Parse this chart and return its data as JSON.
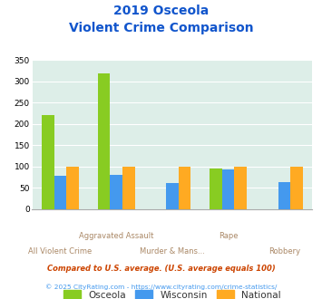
{
  "title_line1": "2019 Osceola",
  "title_line2": "Violent Crime Comparison",
  "categories": [
    "All Violent Crime",
    "Aggravated Assault",
    "Murder & Mans...",
    "Rape",
    "Robbery"
  ],
  "series": {
    "Osceola": [
      220,
      318,
      0,
      95,
      0
    ],
    "Wisconsin": [
      78,
      80,
      62,
      93,
      63
    ],
    "National": [
      100,
      100,
      100,
      100,
      100
    ]
  },
  "colors": {
    "Osceola": "#88cc22",
    "Wisconsin": "#4499ee",
    "National": "#ffaa22"
  },
  "ylim": [
    0,
    350
  ],
  "yticks": [
    0,
    50,
    100,
    150,
    200,
    250,
    300,
    350
  ],
  "plot_bg": "#ddeee8",
  "title_color": "#1155cc",
  "cat_label_color": "#aa8866",
  "footnote1": "Compared to U.S. average. (U.S. average equals 100)",
  "footnote2": "© 2025 CityRating.com - https://www.cityrating.com/crime-statistics/",
  "footnote1_color": "#cc4400",
  "footnote2_color": "#4499ee"
}
